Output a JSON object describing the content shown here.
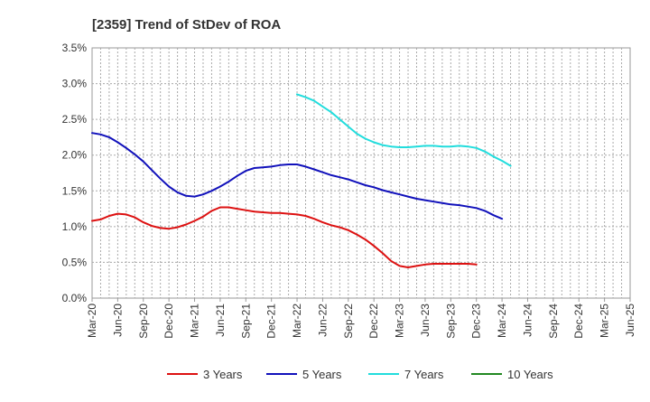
{
  "chart_data": {
    "type": "line",
    "title": "[2359]  Trend of StDev of ROA",
    "xlabel": "",
    "ylabel": "",
    "ylim": [
      0,
      3.5
    ],
    "grid": true,
    "legend_position": "bottom",
    "y_ticks": [
      "0.0%",
      "0.5%",
      "1.0%",
      "1.5%",
      "2.0%",
      "2.5%",
      "3.0%",
      "3.5%"
    ],
    "x_ticks": [
      "Mar-20",
      "Jun-20",
      "Sep-20",
      "Dec-20",
      "Mar-21",
      "Jun-21",
      "Sep-21",
      "Dec-21",
      "Mar-22",
      "Jun-22",
      "Sep-22",
      "Dec-22",
      "Mar-23",
      "Jun-23",
      "Sep-23",
      "Dec-23",
      "Mar-24",
      "Jun-24",
      "Sep-24",
      "Dec-24",
      "Mar-25",
      "Jun-25"
    ],
    "series": [
      {
        "name": "3 Years",
        "color": "#dd1111",
        "values": [
          1.08,
          1.1,
          1.15,
          1.18,
          1.17,
          1.13,
          1.06,
          1.01,
          0.98,
          0.97,
          0.99,
          1.03,
          1.08,
          1.14,
          1.22,
          1.27,
          1.27,
          1.25,
          1.23,
          1.21,
          1.2,
          1.19,
          1.19,
          1.18,
          1.17,
          1.15,
          1.11,
          1.06,
          1.02,
          0.99,
          0.95,
          0.89,
          0.82,
          0.73,
          0.63,
          0.52,
          0.45,
          0.43,
          0.45,
          0.47,
          0.48,
          0.48,
          0.48,
          0.48,
          0.48,
          0.47
        ]
      },
      {
        "name": "5 Years",
        "color": "#1111bb",
        "values": [
          2.31,
          2.29,
          2.25,
          2.18,
          2.1,
          2.01,
          1.91,
          1.79,
          1.67,
          1.56,
          1.48,
          1.43,
          1.42,
          1.45,
          1.5,
          1.56,
          1.63,
          1.71,
          1.78,
          1.82,
          1.83,
          1.84,
          1.86,
          1.87,
          1.87,
          1.84,
          1.8,
          1.76,
          1.72,
          1.69,
          1.66,
          1.62,
          1.58,
          1.55,
          1.51,
          1.48,
          1.45,
          1.42,
          1.39,
          1.37,
          1.35,
          1.33,
          1.31,
          1.3,
          1.28,
          1.26,
          1.22,
          1.16,
          1.11
        ]
      },
      {
        "name": "7 Years",
        "color": "#22dddd",
        "values": [
          null,
          null,
          null,
          null,
          null,
          null,
          null,
          null,
          null,
          null,
          null,
          null,
          null,
          null,
          null,
          null,
          null,
          null,
          null,
          null,
          null,
          null,
          null,
          null,
          2.85,
          2.81,
          2.76,
          2.68,
          2.6,
          2.5,
          2.4,
          2.3,
          2.23,
          2.18,
          2.14,
          2.12,
          2.11,
          2.11,
          2.12,
          2.13,
          2.13,
          2.12,
          2.12,
          2.13,
          2.12,
          2.1,
          2.05,
          1.98,
          1.92,
          1.85
        ]
      },
      {
        "name": "10 Years",
        "color": "#228822",
        "values": []
      }
    ]
  }
}
